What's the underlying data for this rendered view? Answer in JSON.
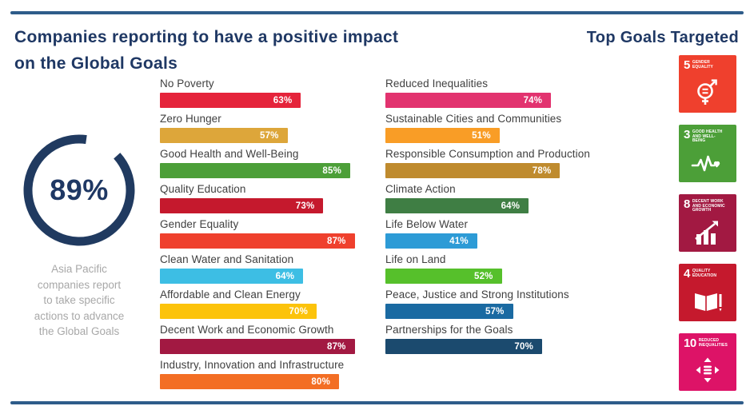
{
  "header": {
    "title": "Companies reporting to have a positive impact\non the Global Goals",
    "top_goals_title": "Top Goals Targeted"
  },
  "summary": {
    "percent": "89%",
    "ring_value": 89,
    "ring_color": "#203A60",
    "caption": "Asia Pacific\ncompanies report\nto take specific\nactions to advance\nthe Global Goals"
  },
  "divider_color": "#2E5C8A",
  "chart_data": {
    "type": "bar",
    "orientation": "horizontal",
    "unit": "percent",
    "xlim": [
      0,
      100
    ],
    "value_label_position": "inside-right",
    "title": "Companies reporting to have a positive impact on the Global Goals",
    "columns": [
      {
        "name": "left",
        "goals": [
          {
            "label": "No Poverty",
            "value": 63,
            "color": "#E5243B"
          },
          {
            "label": "Zero Hunger",
            "value": 57,
            "color": "#DDA63A"
          },
          {
            "label": "Good Health and Well-Being",
            "value": 85,
            "color": "#4C9F38"
          },
          {
            "label": "Quality Education",
            "value": 73,
            "color": "#C5192D"
          },
          {
            "label": "Gender Equality",
            "value": 87,
            "color": "#EF402D"
          },
          {
            "label": "Clean Water and Sanitation",
            "value": 64,
            "color": "#3DBEE4"
          },
          {
            "label": "Affordable and Clean Energy",
            "value": 70,
            "color": "#FCC30B"
          },
          {
            "label": "Decent Work and Economic Growth",
            "value": 87,
            "color": "#A21942"
          },
          {
            "label": "Industry, Innovation and Infrastructure",
            "value": 80,
            "color": "#F36E24"
          }
        ]
      },
      {
        "name": "right",
        "goals": [
          {
            "label": "Reduced Inequalities",
            "value": 74,
            "color": "#E2336F"
          },
          {
            "label": "Sustainable Cities and Communities",
            "value": 51,
            "color": "#F99D26"
          },
          {
            "label": "Responsible Consumption and Production",
            "value": 78,
            "color": "#BF8B2E"
          },
          {
            "label": "Climate Action",
            "value": 64,
            "color": "#3F7E44"
          },
          {
            "label": "Life Below Water",
            "value": 41,
            "color": "#2D9BD6"
          },
          {
            "label": "Life on Land",
            "value": 52,
            "color": "#56C02B"
          },
          {
            "label": "Peace, Justice and Strong Institutions",
            "value": 57,
            "color": "#1A6AA2"
          },
          {
            "label": "Partnerships for the Goals",
            "value": 70,
            "color": "#1B4A6E"
          }
        ]
      }
    ]
  },
  "sdg_icons": [
    {
      "number": "5",
      "label": "Gender Equality",
      "color": "#EF402D",
      "icon": "gender-equality-icon"
    },
    {
      "number": "3",
      "label": "Good Health and Well-Being",
      "color": "#4C9F38",
      "icon": "good-health-icon"
    },
    {
      "number": "8",
      "label": "Decent Work and Economic Growth",
      "color": "#A21942",
      "icon": "decent-work-icon"
    },
    {
      "number": "4",
      "label": "Quality Education",
      "color": "#C5192D",
      "icon": "quality-education-icon"
    },
    {
      "number": "10",
      "label": "Reduced Inequalities",
      "color": "#DD1367",
      "icon": "reduced-inequalities-icon"
    }
  ]
}
